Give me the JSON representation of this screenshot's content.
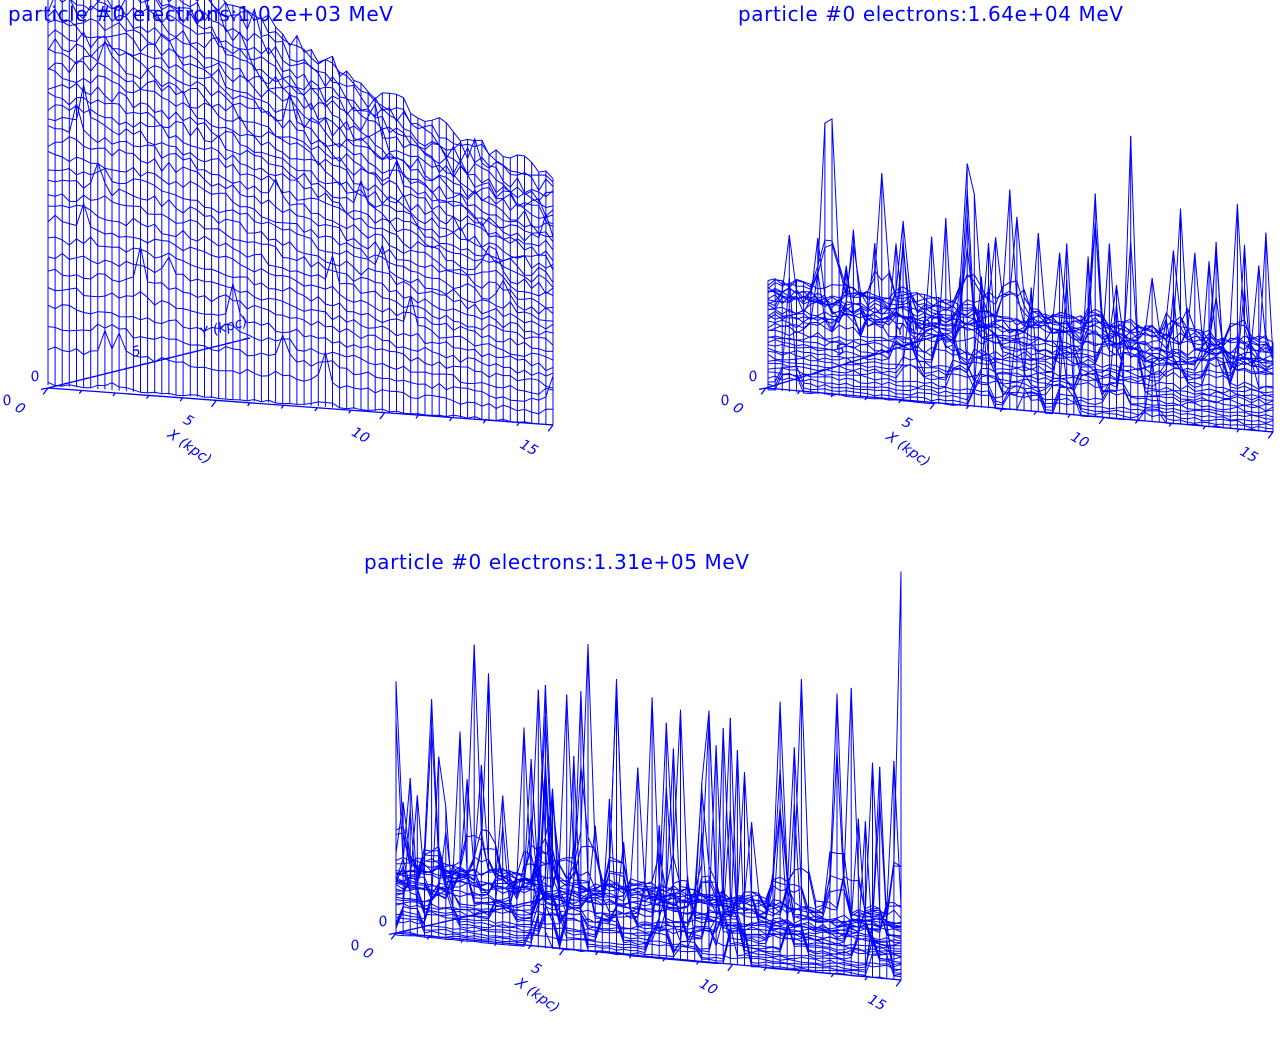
{
  "color": "#0000ff",
  "chart_data": [
    {
      "type": "surface",
      "title": "particle #0 electrons:1.02e+03 MeV",
      "xlabel": "X (kpc)",
      "ylabel": "Y (kpc)",
      "x_ticks": [
        "0",
        "5",
        "10",
        "15"
      ],
      "y_ticks": [
        "0",
        "5"
      ],
      "x_range": [
        0,
        15
      ],
      "grid_shape": "domed, mostly smooth with moderate spikes",
      "peak_relative": 1.0,
      "spikiness": 0.25
    },
    {
      "type": "surface",
      "title": "particle #0 electrons:1.64e+04 MeV",
      "xlabel": "X (kpc)",
      "ylabel": "Y (kpc)",
      "x_ticks": [
        "0",
        "5",
        "10",
        "15"
      ],
      "y_ticks": [
        "0",
        "5"
      ],
      "x_range": [
        0,
        15
      ],
      "grid_shape": "low dome with many sharp spikes",
      "peak_relative": 0.6,
      "spikiness": 0.75
    },
    {
      "type": "surface",
      "title": "particle #0 electrons:1.31e+05 MeV",
      "xlabel": "X (kpc)",
      "ylabel": "Y (kpc)",
      "x_ticks": [
        "0",
        "5",
        "10",
        "15"
      ],
      "y_ticks": [
        "0"
      ],
      "x_range": [
        0,
        15
      ],
      "grid_shape": "flat base with very sharp spikes",
      "peak_relative": 0.35,
      "spikiness": 1.0
    }
  ]
}
